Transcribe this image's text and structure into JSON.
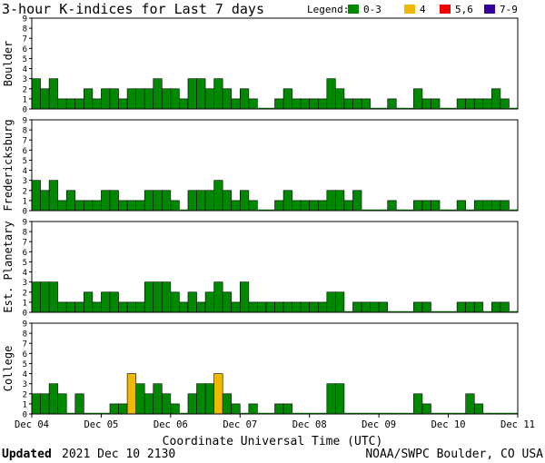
{
  "title": "3-hour K-indices for Last 7 days",
  "legend": {
    "label": "Legend:",
    "items": [
      {
        "label": "0-3",
        "color": "#008800"
      },
      {
        "label": "4",
        "color": "#f0b800"
      },
      {
        "label": "5,6",
        "color": "#ee0000"
      },
      {
        "label": "7-9",
        "color": "#330099"
      }
    ]
  },
  "xlabel": "Coordinate Universal Time (UTC)",
  "footer": {
    "updated_label": "Updated",
    "updated_value": "2021 Dec 10 2130",
    "credit": "NOAA/SWPC Boulder, CO USA"
  },
  "chart_data": {
    "type": "bar",
    "x_ticks": [
      "Dec 04",
      "Dec 05",
      "Dec 06",
      "Dec 07",
      "Dec 08",
      "Dec 09",
      "Dec 10",
      "Dec 11"
    ],
    "intervals_per_day": 8,
    "ylim": [
      0,
      9
    ],
    "y_ticks": [
      0,
      1,
      2,
      3,
      4,
      5,
      6,
      7,
      8,
      9
    ],
    "grid": false,
    "legend_position": "top-right",
    "panels": [
      {
        "name": "Boulder",
        "values": [
          3,
          2,
          3,
          1,
          1,
          1,
          2,
          1,
          2,
          2,
          1,
          2,
          2,
          2,
          3,
          2,
          2,
          1,
          3,
          3,
          2,
          3,
          2,
          1,
          2,
          1,
          0,
          0,
          1,
          2,
          1,
          1,
          1,
          1,
          3,
          2,
          1,
          1,
          1,
          0,
          0,
          1,
          0,
          0,
          2,
          1,
          1,
          0,
          0,
          1,
          1,
          1,
          1,
          2,
          1,
          0
        ]
      },
      {
        "name": "Fredericksburg",
        "values": [
          3,
          2,
          3,
          1,
          2,
          1,
          1,
          1,
          2,
          2,
          1,
          1,
          1,
          2,
          2,
          2,
          1,
          0,
          2,
          2,
          2,
          3,
          2,
          1,
          2,
          1,
          0,
          0,
          1,
          2,
          1,
          1,
          1,
          1,
          2,
          2,
          1,
          2,
          0,
          0,
          0,
          1,
          0,
          0,
          1,
          1,
          1,
          0,
          0,
          1,
          0,
          1,
          1,
          1,
          1,
          0
        ]
      },
      {
        "name": "Est. Planetary",
        "values": [
          3,
          3,
          3,
          1,
          1,
          1,
          2,
          1,
          2,
          2,
          1,
          1,
          1,
          3,
          3,
          3,
          2,
          1,
          2,
          1,
          2,
          3,
          2,
          1,
          3,
          1,
          1,
          1,
          1,
          1,
          1,
          1,
          1,
          1,
          2,
          2,
          0,
          1,
          1,
          1,
          1,
          0,
          0,
          0,
          1,
          1,
          0,
          0,
          0,
          1,
          1,
          1,
          0,
          1,
          1,
          0
        ]
      },
      {
        "name": "College",
        "values": [
          2,
          2,
          3,
          2,
          0,
          2,
          0,
          0,
          0,
          1,
          1,
          4,
          3,
          2,
          3,
          2,
          1,
          0,
          2,
          3,
          3,
          4,
          2,
          1,
          0,
          1,
          0,
          0,
          1,
          1,
          0,
          0,
          0,
          0,
          3,
          3,
          0,
          0,
          0,
          0,
          0,
          0,
          0,
          0,
          2,
          1,
          0,
          0,
          0,
          0,
          2,
          1,
          0,
          0,
          0,
          0
        ]
      }
    ]
  }
}
